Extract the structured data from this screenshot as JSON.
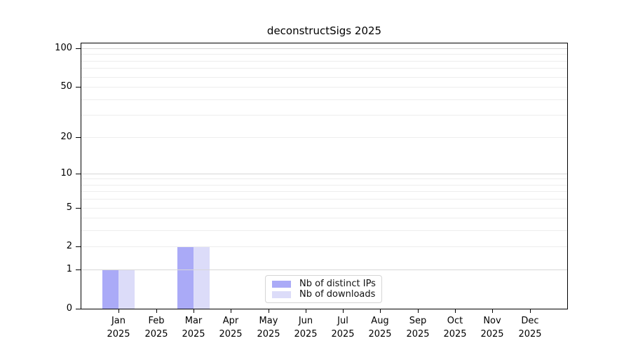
{
  "chart_data": {
    "type": "bar",
    "title": "deconstructSigs 2025",
    "categories": [
      "Jan",
      "Feb",
      "Mar",
      "Apr",
      "May",
      "Jun",
      "Jul",
      "Aug",
      "Sep",
      "Oct",
      "Nov",
      "Dec"
    ],
    "x_year_label": "2025",
    "series": [
      {
        "name": "Nb of distinct IPs",
        "color": "#aaaaf7",
        "values": [
          1,
          0,
          2,
          0,
          0,
          0,
          0,
          0,
          0,
          0,
          0,
          0
        ]
      },
      {
        "name": "Nb of downloads",
        "color": "#dcdcf9",
        "values": [
          1,
          0,
          2,
          0,
          0,
          0,
          0,
          0,
          0,
          0,
          0,
          0
        ]
      }
    ],
    "xlabel": "",
    "ylabel": "",
    "yscale": "log1p",
    "ylim": [
      0,
      112
    ],
    "yticks": [
      0,
      1,
      2,
      5,
      10,
      20,
      50,
      100
    ],
    "gridlines": [
      1,
      2,
      3,
      4,
      5,
      6,
      7,
      8,
      9,
      10,
      20,
      30,
      40,
      50,
      60,
      70,
      80,
      90,
      100
    ],
    "major_gridlines": [
      1,
      10,
      100
    ],
    "grid": "on",
    "legend_position": "lower center"
  },
  "colors": {
    "background": "#ffffff",
    "axis": "#000000",
    "grid_minor": "#ededed",
    "grid_major": "#d7d7d7",
    "bar_distinct_ips": "#aaaaf7",
    "bar_downloads": "#dcdcf9"
  }
}
